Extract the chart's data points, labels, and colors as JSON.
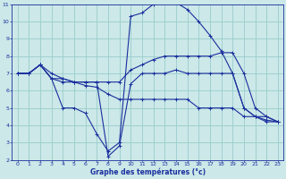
{
  "xlabel": "Graphe des températures (°c)",
  "bg_color": "#cce8e8",
  "line_color": "#1a2f9e",
  "grid_color": "#99cccc",
  "xlim": [
    -0.5,
    23.5
  ],
  "ylim": [
    2,
    11
  ],
  "xticks": [
    0,
    1,
    2,
    3,
    4,
    5,
    6,
    7,
    8,
    9,
    10,
    11,
    12,
    13,
    14,
    15,
    16,
    17,
    18,
    19,
    20,
    21,
    22,
    23
  ],
  "yticks": [
    2,
    3,
    4,
    5,
    6,
    7,
    8,
    9,
    10,
    11
  ],
  "series": [
    {
      "x": [
        0,
        1,
        2,
        3,
        4,
        5,
        6,
        7,
        8,
        9,
        10,
        11,
        12,
        13,
        14,
        15,
        16,
        17,
        18,
        19,
        20,
        21,
        22,
        23
      ],
      "y": [
        7.0,
        7.0,
        7.5,
        7.0,
        6.7,
        6.5,
        6.5,
        6.5,
        2.2,
        2.8,
        6.4,
        7.0,
        7.0,
        7.0,
        7.2,
        7.0,
        7.0,
        7.0,
        7.0,
        7.0,
        5.0,
        4.5,
        4.2,
        4.2
      ]
    },
    {
      "x": [
        0,
        1,
        2,
        3,
        4,
        5,
        6,
        7,
        8,
        9,
        10,
        11,
        12,
        13,
        14,
        15,
        16,
        17,
        18,
        19,
        20,
        21,
        22,
        23
      ],
      "y": [
        7.0,
        7.0,
        7.5,
        6.7,
        5.0,
        5.0,
        4.7,
        3.5,
        2.5,
        3.0,
        10.3,
        10.5,
        11.0,
        11.2,
        11.1,
        10.7,
        10.0,
        9.2,
        8.3,
        7.0,
        5.0,
        4.5,
        4.5,
        4.2
      ]
    },
    {
      "x": [
        0,
        1,
        2,
        3,
        4,
        5,
        6,
        7,
        8,
        9,
        10,
        11,
        12,
        13,
        14,
        15,
        16,
        17,
        18,
        19,
        20,
        21,
        22,
        23
      ],
      "y": [
        7.0,
        7.0,
        7.5,
        6.7,
        6.7,
        6.5,
        6.5,
        6.5,
        6.5,
        6.5,
        7.2,
        7.5,
        7.8,
        8.0,
        8.0,
        8.0,
        8.0,
        8.0,
        8.2,
        8.2,
        7.0,
        5.0,
        4.5,
        4.2
      ]
    },
    {
      "x": [
        0,
        1,
        2,
        3,
        4,
        5,
        6,
        7,
        8,
        9,
        10,
        11,
        12,
        13,
        14,
        15,
        16,
        17,
        18,
        19,
        20,
        21,
        22,
        23
      ],
      "y": [
        7.0,
        7.0,
        7.5,
        6.7,
        6.5,
        6.5,
        6.3,
        6.2,
        5.8,
        5.5,
        5.5,
        5.5,
        5.5,
        5.5,
        5.5,
        5.5,
        5.0,
        5.0,
        5.0,
        5.0,
        4.5,
        4.5,
        4.3,
        4.2
      ]
    }
  ]
}
